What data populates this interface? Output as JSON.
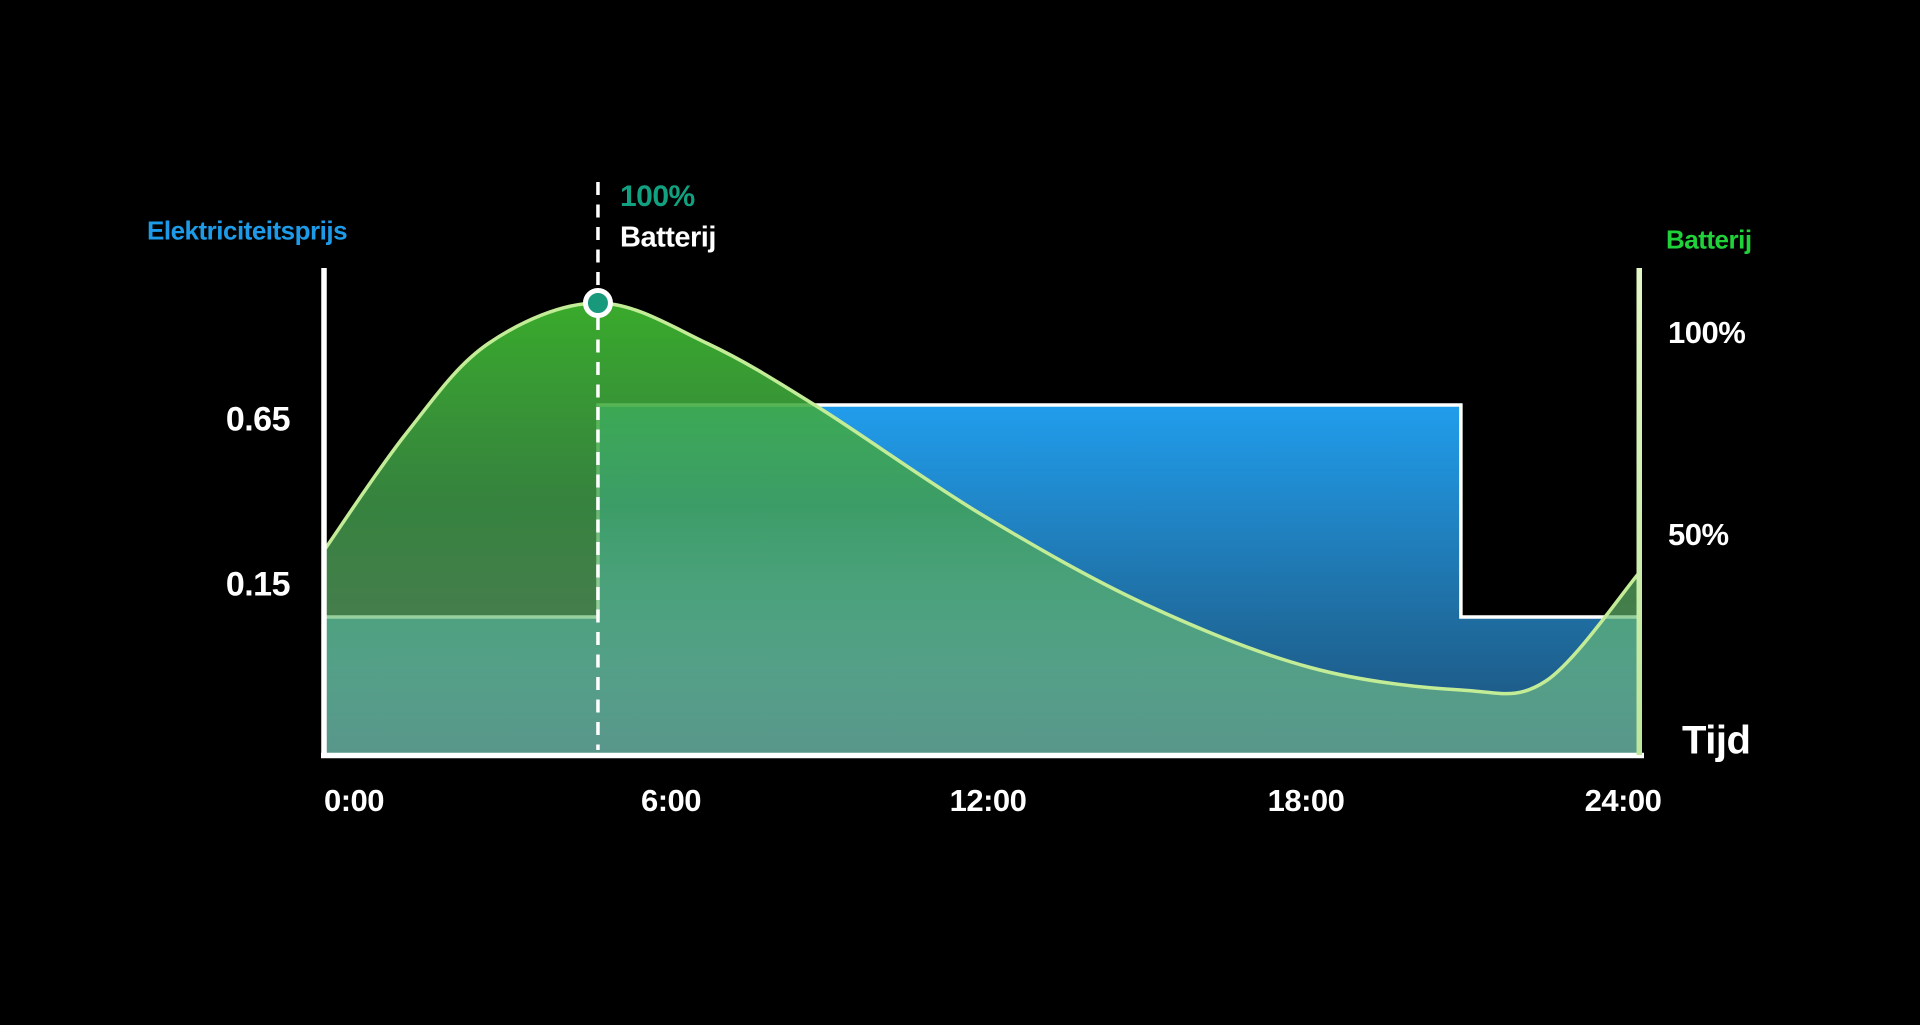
{
  "left_axis": {
    "title": "Elektriciteitsprijs",
    "ticks": [
      "0.65",
      "0.15"
    ]
  },
  "right_axis": {
    "title": "Batterij",
    "ticks": [
      "100%",
      "50%"
    ]
  },
  "x_axis": {
    "title": "Tijd",
    "ticks": [
      "0:00",
      "6:00",
      "12:00",
      "18:00",
      "24:00"
    ]
  },
  "annotation": {
    "value": "100%",
    "label": "Batterij"
  },
  "colors": {
    "background": "#000000",
    "label_blue": "#1D9BE9",
    "label_teal": "#12A180",
    "label_green": "#1FD23A",
    "text_white": "#FFFFFF",
    "axis_white": "#FFFFFF",
    "price_line": "#FFFFFF",
    "price_fill_top": "#219DEC",
    "price_fill_mid": "#1F72A8",
    "price_fill_bottom": "#1D5078",
    "battery_line": "#C3EC97",
    "battery_fill_top": "#3CB32D",
    "battery_fill_mid": "#43A24E",
    "battery_fill_bottom": "#8FD79A",
    "battery_axis_bar_top": "#E3F7C6",
    "battery_axis_bar_bottom": "#BCE79D",
    "marker_fill": "#18997B",
    "marker_ring": "#FFFFFF"
  },
  "chart_data": {
    "type": "area",
    "x_unit": "hours",
    "x_range": [
      0,
      24
    ],
    "x_ticks": [
      "0:00",
      "6:00",
      "12:00",
      "18:00",
      "24:00"
    ],
    "price_axis": {
      "label": "Elektriciteitsprijs",
      "ticks": [
        0.65,
        0.15
      ]
    },
    "battery_axis": {
      "label": "Batterij",
      "ticks": [
        "100%",
        "50%"
      ]
    },
    "series": [
      {
        "name": "Elektriciteitsprijs",
        "style": "step-area",
        "segments": [
          {
            "from": 0,
            "to": 5,
            "value": 0.15
          },
          {
            "from": 5,
            "to": 20.75,
            "value": 0.65
          },
          {
            "from": 20.75,
            "to": 24,
            "value": 0.15
          }
        ]
      },
      {
        "name": "Batterij",
        "style": "smooth-area",
        "unit": "percent",
        "points": [
          [
            0,
            45
          ],
          [
            1.5,
            71
          ],
          [
            3,
            91
          ],
          [
            5,
            100
          ],
          [
            7,
            91
          ],
          [
            9,
            77
          ],
          [
            12,
            53
          ],
          [
            15,
            33
          ],
          [
            18,
            19
          ],
          [
            20.75,
            14
          ],
          [
            22.3,
            16
          ],
          [
            24,
            40
          ]
        ]
      }
    ],
    "annotations": [
      {
        "t": 5,
        "battery_pct": 100,
        "value_text": "100%",
        "label_text": "Batterij",
        "marker": "circle-on-dashed-line"
      }
    ],
    "legend_position": "none",
    "grid": false
  }
}
